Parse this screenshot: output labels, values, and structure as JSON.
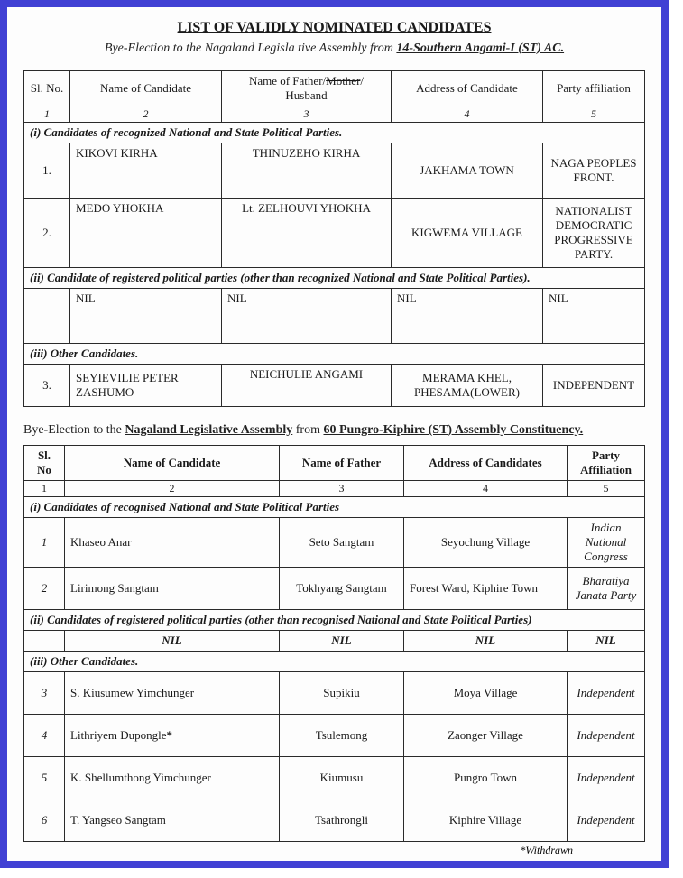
{
  "colors": {
    "frame": "#4141d4",
    "border": "#2a2a2a",
    "text": "#1a1a1a",
    "bg": "#fdfdfd"
  },
  "title": "LIST OF VALIDLY NOMINATED CANDIDATES",
  "sub1_pre": "Bye-Election to the Nagaland Legisla tive Assembly from ",
  "sub1_bold": "14-Southern Angami-I (ST) AC.",
  "t1": {
    "headers": {
      "sl": "Sl. No.",
      "name": "Name of Candidate",
      "father_pre": "Name of Father/",
      "father_strike": "Mother",
      "father_post": "/ Husband",
      "addr": "Address of Candidate",
      "party": "Party affiliation"
    },
    "nums": [
      "1",
      "2",
      "3",
      "4",
      "5"
    ],
    "sec_i": "(i)      Candidates of recognized National and State Political Parties.",
    "r1": {
      "sl": "1.",
      "name": "KIKOVI KIRHA",
      "father": "THINUZEHO KIRHA",
      "addr": "JAKHAMA TOWN",
      "party": "NAGA PEOPLES FRONT."
    },
    "r2": {
      "sl": "2.",
      "name": "MEDO YHOKHA",
      "father": "Lt. ZELHOUVI YHOKHA",
      "addr": "KIGWEMA VILLAGE",
      "party": "NATIONALIST DEMOCRATIC PROGRESSIVE PARTY."
    },
    "sec_ii": "(ii)      Candidate of registered political parties (other than recognized National and State Political Parties).",
    "nil": {
      "sl": "",
      "name": "NIL",
      "father": "NIL",
      "addr": "NIL",
      "party": "NIL"
    },
    "sec_iii": "(iii)     Other Candidates.",
    "r3": {
      "sl": "3.",
      "name": "SEYIEVILIE PETER ZASHUMO",
      "father": "NEICHULIE ANGAMI",
      "addr": "MERAMA KHEL, PHESAMA(LOWER)",
      "party": "INDEPENDENT"
    }
  },
  "sub2_pre": "Bye-Election to the ",
  "sub2_u1": "Nagaland Legislative Assembly",
  "sub2_mid": " from ",
  "sub2_u2": "60 Pungro-Kiphire (ST) Assembly Constituency.",
  "t2": {
    "headers": {
      "sl": "Sl. No",
      "name": "Name of Candidate",
      "father": "Name of Father",
      "addr": "Address of Candidates",
      "party": "Party Affiliation"
    },
    "nums": [
      "1",
      "2",
      "3",
      "4",
      "5"
    ],
    "sec_i": "(i)    Candidates of recognised National and State Political Parties",
    "r1": {
      "sl": "1",
      "name": "Khaseo Anar",
      "father": "Seto Sangtam",
      "addr": "Seyochung Village",
      "party": "Indian National Congress"
    },
    "r2": {
      "sl": "2",
      "name": "Lirimong Sangtam",
      "father": "Tokhyang Sangtam",
      "addr": "Forest Ward, Kiphire Town",
      "party": "Bharatiya Janata Party"
    },
    "sec_ii": "(ii)   Candidates of registered political parties (other than recognised National and State Political Parties)",
    "nil": {
      "sl": "",
      "name": "NIL",
      "father": "NIL",
      "addr": "NIL",
      "party": "NIL"
    },
    "sec_iii": "(iii)  Other Candidates.",
    "r3": {
      "sl": "3",
      "name": "S. Kiusumew Yimchunger",
      "father": "Supikiu",
      "addr": "Moya Village",
      "party": "Independent"
    },
    "r4": {
      "sl": "4",
      "name": "Lithriyem Dupongle",
      "star": "*",
      "father": "Tsulemong",
      "addr": "Zaonger Village",
      "party": "Independent"
    },
    "r5": {
      "sl": "5",
      "name": "K. Shellumthong Yimchunger",
      "father": "Kiumusu",
      "addr": "Pungro Town",
      "party": "Independent"
    },
    "r6": {
      "sl": "6",
      "name": "T. Yangseo Sangtam",
      "father": "Tsathrongli",
      "addr": "Kiphire Village",
      "party": "Independent"
    }
  },
  "footnote": "*Withdrawn"
}
